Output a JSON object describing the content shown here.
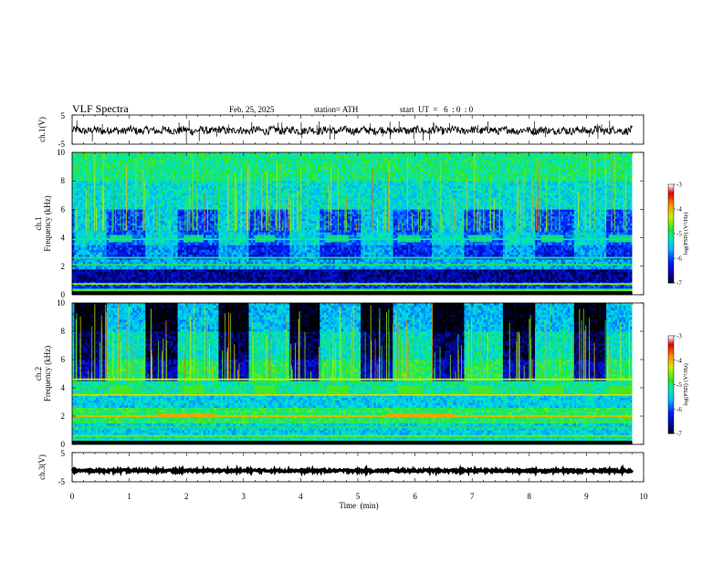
{
  "header": {
    "title": "VLF  Spectra",
    "date": "Feb. 25, 2025",
    "station": "station= ATH",
    "start_time": "start  UT  =   6  : 0  : 0"
  },
  "chart_data": [
    {
      "type": "line",
      "name": "ch1-waveform",
      "ylabel": "ch.1(V)",
      "ylim": [
        -5,
        5
      ],
      "yticks": [
        "5",
        "-5"
      ],
      "xlim": [
        0,
        10
      ],
      "x_end": 9.8,
      "level": -0.3,
      "grid": false
    },
    {
      "type": "heatmap",
      "name": "ch1-spectrogram",
      "ylabel": "ch.1\nFrequency  (kHz)",
      "ylabel_lines": [
        "ch.1",
        "Frequency  (kHz)"
      ],
      "yticks": [
        "0",
        "2",
        "4",
        "6",
        "8",
        "10"
      ],
      "ylim": [
        0,
        10
      ],
      "xlim": [
        0,
        10
      ],
      "x_end": 9.8,
      "colorbar": {
        "label": "log(PSD) (V²/Hz)",
        "ticks": [
          "-3",
          "-4",
          "-5",
          "-6",
          "-7"
        ],
        "range": [
          -7,
          -3
        ]
      },
      "bands": [
        {
          "f": [
            0.0,
            0.25
          ],
          "v": -6.8
        },
        {
          "f": [
            0.25,
            0.45
          ],
          "v": -5.2
        },
        {
          "f": [
            0.45,
            0.9
          ],
          "v": -6.1
        },
        {
          "f": [
            0.9,
            1.8
          ],
          "v": -6.6
        },
        {
          "f": [
            1.8,
            2.5
          ],
          "v": -5.6
        },
        {
          "f": [
            2.5,
            3.5
          ],
          "v": -5.9
        },
        {
          "f": [
            3.5,
            4.4
          ],
          "v": -5.6
        },
        {
          "f": [
            4.4,
            6.0
          ],
          "v": -5.7
        },
        {
          "f": [
            6.0,
            8.0
          ],
          "v": -5.3
        },
        {
          "f": [
            8.0,
            10.0
          ],
          "v": -5.0
        }
      ],
      "tones": [
        {
          "f": 0.3,
          "v": -4.6
        },
        {
          "f": 2.1,
          "v": -4.9
        },
        {
          "f": 2.6,
          "v": -5.0
        },
        {
          "f": 3.9,
          "v": -5.1
        },
        {
          "f": 0.75,
          "v": -4.4
        }
      ],
      "bursts": [
        {
          "t": [
            0.65,
            1.05
          ],
          "f": [
            3.7,
            4.2
          ],
          "v": -5.0
        },
        {
          "t": [
            1.95,
            2.3
          ],
          "f": [
            3.7,
            4.2
          ],
          "v": -5.0
        },
        {
          "t": [
            3.2,
            3.55
          ],
          "f": [
            3.7,
            4.2
          ],
          "v": -5.0
        },
        {
          "t": [
            4.45,
            4.85
          ],
          "f": [
            3.7,
            4.2
          ],
          "v": -5.0
        },
        {
          "t": [
            5.7,
            6.1
          ],
          "f": [
            3.7,
            4.2
          ],
          "v": -5.0
        },
        {
          "t": [
            6.95,
            7.35
          ],
          "f": [
            3.7,
            4.2
          ],
          "v": -5.0
        },
        {
          "t": [
            8.2,
            8.6
          ],
          "f": [
            3.7,
            4.2
          ],
          "v": -5.0
        },
        {
          "t": [
            9.4,
            9.8
          ],
          "f": [
            3.7,
            4.2
          ],
          "v": -5.0
        }
      ],
      "quiet_spans": [
        [
          0.05,
          0.6
        ],
        [
          1.3,
          1.85
        ],
        [
          2.55,
          3.1
        ],
        [
          3.8,
          4.35
        ],
        [
          5.05,
          5.6
        ],
        [
          6.3,
          6.85
        ],
        [
          7.55,
          8.1
        ],
        [
          8.8,
          9.35
        ]
      ]
    },
    {
      "type": "heatmap",
      "name": "ch2-spectrogram",
      "ylabel": "ch.2\nFrequency  (kHz)",
      "ylabel_lines": [
        "ch.2",
        "Frequency  (kHz)"
      ],
      "yticks": [
        "0",
        "2",
        "4",
        "6",
        "8",
        "10"
      ],
      "ylim": [
        0,
        10
      ],
      "xlim": [
        0,
        10
      ],
      "x_end": 9.8,
      "colorbar": {
        "label": "log(PSD) (V²/Hz)",
        "ticks": [
          "-3",
          "-4",
          "-5",
          "-6",
          "-7"
        ],
        "range": [
          -7,
          -3
        ]
      },
      "bands": [
        {
          "f": [
            0.0,
            0.5
          ],
          "v": -5.2
        },
        {
          "f": [
            0.5,
            1.5
          ],
          "v": -5.4
        },
        {
          "f": [
            1.5,
            2.6
          ],
          "v": -4.9
        },
        {
          "f": [
            2.6,
            3.5
          ],
          "v": -5.4
        },
        {
          "f": [
            3.5,
            4.5
          ],
          "v": -5.1
        },
        {
          "f": [
            4.5,
            6.0
          ],
          "v": -5.6
        },
        {
          "f": [
            6.0,
            8.0
          ],
          "v": -5.9
        },
        {
          "f": [
            8.0,
            10.0
          ],
          "v": -6.2
        }
      ],
      "tones": [
        {
          "f": 2.0,
          "v": -4.0
        },
        {
          "f": 3.5,
          "v": -4.2
        },
        {
          "f": 4.6,
          "v": -4.3
        },
        {
          "f": 0.6,
          "v": -4.6
        },
        {
          "f": 1.2,
          "v": -4.8
        }
      ],
      "bursts": [
        {
          "t": [
            0.65,
            1.05
          ],
          "f": [
            3.6,
            4.2
          ],
          "v": -4.7
        },
        {
          "t": [
            1.95,
            2.3
          ],
          "f": [
            3.6,
            4.2
          ],
          "v": -4.7
        },
        {
          "t": [
            3.2,
            3.55
          ],
          "f": [
            3.6,
            4.2
          ],
          "v": -4.7
        },
        {
          "t": [
            4.45,
            4.85
          ],
          "f": [
            3.6,
            4.2
          ],
          "v": -4.7
        },
        {
          "t": [
            5.7,
            6.1
          ],
          "f": [
            3.6,
            4.2
          ],
          "v": -4.7
        },
        {
          "t": [
            6.95,
            7.35
          ],
          "f": [
            3.6,
            4.2
          ],
          "v": -4.7
        },
        {
          "t": [
            8.2,
            8.6
          ],
          "f": [
            3.6,
            4.2
          ],
          "v": -4.7
        },
        {
          "t": [
            9.4,
            9.8
          ],
          "f": [
            3.6,
            4.2
          ],
          "v": -4.7
        },
        {
          "t": [
            1.5,
            2.5
          ],
          "f": [
            1.9,
            2.2
          ],
          "v": -3.9
        },
        {
          "t": [
            5.5,
            6.7
          ],
          "f": [
            1.9,
            2.2
          ],
          "v": -3.9
        }
      ],
      "quiet_spans": [
        [
          0.05,
          0.6
        ],
        [
          1.3,
          1.85
        ],
        [
          2.55,
          3.1
        ],
        [
          3.8,
          4.35
        ],
        [
          5.05,
          5.6
        ],
        [
          6.3,
          6.85
        ],
        [
          7.55,
          8.1
        ],
        [
          8.8,
          9.35
        ]
      ]
    },
    {
      "type": "line",
      "name": "ch3-waveform",
      "ylabel": "ch.3(V)",
      "ylim": [
        -5,
        5
      ],
      "yticks": [
        "5",
        "-5"
      ],
      "xlim": [
        0,
        10
      ],
      "x_end": 9.8,
      "level": -1.2,
      "grid": false
    }
  ],
  "x_axis": {
    "label": "Time  (min)",
    "ticks": [
      "0",
      "1",
      "2",
      "3",
      "4",
      "5",
      "6",
      "7",
      "8",
      "9",
      "10"
    ],
    "range": [
      0,
      10
    ]
  }
}
